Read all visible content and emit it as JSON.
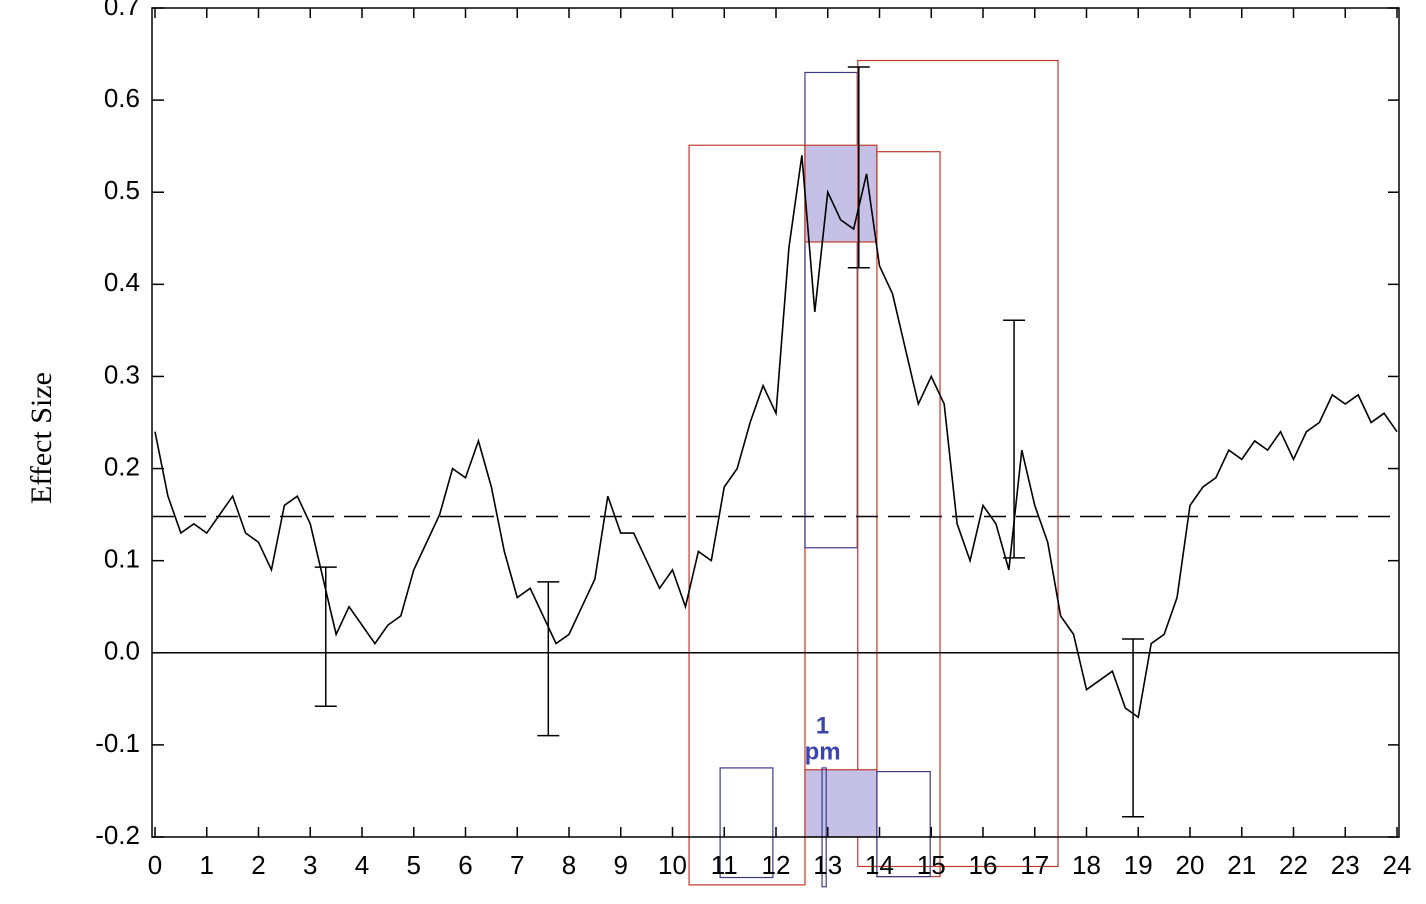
{
  "chart_data": {
    "type": "line",
    "ylabel": "Effect Size",
    "xlim": [
      0,
      24
    ],
    "ylim": [
      -0.2,
      0.7
    ],
    "xticks": [
      0,
      1,
      2,
      3,
      4,
      5,
      6,
      7,
      8,
      9,
      10,
      11,
      12,
      13,
      14,
      15,
      16,
      17,
      18,
      19,
      20,
      21,
      22,
      23,
      24
    ],
    "yticks": [
      -0.2,
      -0.1,
      {
        "value": 0,
        "label": "0.0"
      },
      0.1,
      0.2,
      0.3,
      0.4,
      0.5,
      0.6,
      0.7
    ],
    "series": [
      {
        "color": "#000000",
        "x": [
          0,
          0.25,
          0.5,
          0.75,
          1,
          1.25,
          1.5,
          1.75,
          2,
          2.25,
          2.5,
          2.75,
          3,
          3.25,
          3.5,
          3.75,
          4,
          4.25,
          4.5,
          4.75,
          5,
          5.25,
          5.5,
          5.75,
          6,
          6.25,
          6.5,
          6.75,
          7,
          7.25,
          7.5,
          7.75,
          8,
          8.25,
          8.5,
          8.75,
          9,
          9.25,
          9.5,
          9.75,
          10,
          10.25,
          10.5,
          10.75,
          11,
          11.25,
          11.5,
          11.75,
          12,
          12.25,
          12.5,
          12.75,
          13,
          13.25,
          13.5,
          13.75,
          14,
          14.25,
          14.5,
          14.75,
          15,
          15.25,
          15.5,
          15.75,
          16,
          16.25,
          16.5,
          16.75,
          17,
          17.25,
          17.5,
          17.75,
          18,
          18.25,
          18.5,
          18.75,
          19,
          19.25,
          19.5,
          19.75,
          20,
          20.25,
          20.5,
          20.75,
          21,
          21.25,
          21.5,
          21.75,
          22,
          22.25,
          22.5,
          22.75,
          23,
          23.25,
          23.5,
          23.75,
          24
        ],
        "values": [
          0.24,
          0.17,
          0.13,
          0.14,
          0.13,
          0.15,
          0.17,
          0.13,
          0.12,
          0.09,
          0.16,
          0.17,
          0.14,
          0.08,
          0.02,
          0.05,
          0.03,
          0.01,
          0.03,
          0.04,
          0.09,
          0.12,
          0.15,
          0.2,
          0.19,
          0.23,
          0.18,
          0.11,
          0.06,
          0.07,
          0.04,
          0.01,
          0.02,
          0.05,
          0.08,
          0.17,
          0.13,
          0.13,
          0.1,
          0.07,
          0.09,
          0.05,
          0.11,
          0.1,
          0.18,
          0.2,
          0.25,
          0.29,
          0.26,
          0.44,
          0.54,
          0.37,
          0.5,
          0.47,
          0.46,
          0.52,
          0.42,
          0.39,
          0.33,
          0.27,
          0.3,
          0.27,
          0.14,
          0.1,
          0.16,
          0.14,
          0.09,
          0.22,
          0.16,
          0.12,
          0.04,
          0.02,
          -0.04,
          -0.03,
          -0.02,
          -0.06,
          -0.07,
          0.01,
          0.02,
          0.06,
          0.16,
          0.18,
          0.19,
          0.22,
          0.21,
          0.23,
          0.22,
          0.24,
          0.21,
          0.24,
          0.25,
          0.28,
          0.27,
          0.28,
          0.25,
          0.26,
          0.24
        ]
      }
    ],
    "reference_lines": [
      {
        "value": 0,
        "style": "solid"
      },
      {
        "value": 0.148,
        "style": "dashed"
      }
    ],
    "error_bars": [
      {
        "x": 3.3,
        "low": -0.058,
        "high": 0.093
      },
      {
        "x": 7.6,
        "low": -0.09,
        "high": 0.077
      },
      {
        "x": 13.6,
        "low": 0.418,
        "high": 0.636
      },
      {
        "x": 16.6,
        "low": 0.103,
        "high": 0.361
      },
      {
        "x": 18.9,
        "low": -0.178,
        "high": 0.015
      }
    ],
    "boxes": [
      {
        "x": [
          10.32,
          12.56
        ],
        "y": [
          -0.252,
          0.551
        ],
        "color": "#c0392b"
      },
      {
        "x": [
          12.56,
          13.57
        ],
        "y": [
          0.114,
          0.63
        ],
        "color": "#3a3a8c"
      },
      {
        "x": [
          12.56,
          13.95
        ],
        "y": [
          0.446,
          0.551
        ],
        "color": "#c0392b",
        "fill": "#c5c0e6"
      },
      {
        "x": [
          13.58,
          17.45
        ],
        "y": [
          -0.232,
          0.643
        ],
        "color": "#c0392b"
      },
      {
        "x": [
          13.95,
          15.17
        ],
        "y": [
          -0.243,
          0.544
        ],
        "color": "#c0392b"
      },
      {
        "x": [
          10.92,
          11.94
        ],
        "y": [
          -0.244,
          -0.125
        ],
        "color": "#3a3a8c"
      },
      {
        "x": [
          12.56,
          13.95
        ],
        "y": [
          -0.2,
          -0.127
        ],
        "color": "#c0392b",
        "fill": "#c5c0e6"
      },
      {
        "x": [
          13.95,
          14.98
        ],
        "y": [
          -0.243,
          -0.129
        ],
        "color": "#3a3a8c"
      },
      {
        "x": [
          12.89,
          12.97
        ],
        "y": [
          -0.254,
          -0.125
        ],
        "color": "#3a3a8c"
      }
    ],
    "annotation": {
      "lines": [
        "1",
        "pm"
      ],
      "x": 12.9,
      "color": "#3a44b0"
    }
  }
}
